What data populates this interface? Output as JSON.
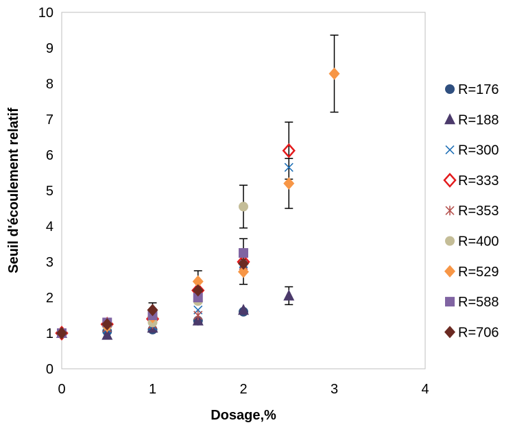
{
  "chart_data": {
    "type": "scatter",
    "xlabel": "Dosage,%",
    "ylabel": "Seuil d'écoulement relatif",
    "xlim": [
      0,
      4
    ],
    "ylim": [
      0,
      10
    ],
    "x_ticks": [
      "0",
      "1",
      "2",
      "3",
      "4"
    ],
    "y_ticks": [
      "0",
      "1",
      "2",
      "3",
      "4",
      "5",
      "6",
      "7",
      "8",
      "9",
      "10"
    ],
    "grid": false,
    "legend_position": "right",
    "series": [
      {
        "name": "R=176",
        "marker": "circle",
        "color": "#2F4F7F",
        "points": [
          {
            "x": 0,
            "y": 1
          },
          {
            "x": 0.5,
            "y": 1.05
          },
          {
            "x": 1,
            "y": 1.1
          },
          {
            "x": 1.5,
            "y": 1.35
          },
          {
            "x": 2,
            "y": 1.6
          }
        ]
      },
      {
        "name": "R=188",
        "marker": "triangle",
        "color": "#4B3A6B",
        "points": [
          {
            "x": 0,
            "y": 1
          },
          {
            "x": 0.5,
            "y": 0.95
          },
          {
            "x": 1,
            "y": 1.15
          },
          {
            "x": 1.5,
            "y": 1.35
          },
          {
            "x": 2,
            "y": 1.65
          },
          {
            "x": 2.5,
            "y": 2.05,
            "err": 0.25
          }
        ]
      },
      {
        "name": "R=300",
        "marker": "x",
        "color": "#1F6FB5",
        "points": [
          {
            "x": 0,
            "y": 1
          },
          {
            "x": 0.5,
            "y": 1.1
          },
          {
            "x": 1,
            "y": 1.2
          },
          {
            "x": 1.5,
            "y": 1.65
          },
          {
            "x": 2,
            "y": 2.95
          },
          {
            "x": 2.5,
            "y": 5.65
          }
        ]
      },
      {
        "name": "R=333",
        "marker": "diamond-open",
        "color": "#E31A1C",
        "points": [
          {
            "x": 0,
            "y": 1
          },
          {
            "x": 0.5,
            "y": 1.25
          },
          {
            "x": 1,
            "y": 1.4
          },
          {
            "x": 1.5,
            "y": 2.2
          },
          {
            "x": 2,
            "y": 3.0
          },
          {
            "x": 2.5,
            "y": 6.12,
            "err": 0.8
          }
        ]
      },
      {
        "name": "R=353",
        "marker": "star",
        "color": "#B5524F",
        "points": [
          {
            "x": 0,
            "y": 1
          },
          {
            "x": 0.5,
            "y": 1.15
          },
          {
            "x": 1,
            "y": 1.25
          },
          {
            "x": 1.5,
            "y": 1.5
          },
          {
            "x": 2,
            "y": 2.9
          }
        ]
      },
      {
        "name": "R=400",
        "marker": "circle",
        "color": "#C4BD97",
        "points": [
          {
            "x": 0,
            "y": 1
          },
          {
            "x": 0.5,
            "y": 1.2
          },
          {
            "x": 1,
            "y": 1.3
          },
          {
            "x": 1.5,
            "y": 1.9
          },
          {
            "x": 2,
            "y": 4.55,
            "err": 0.6
          }
        ]
      },
      {
        "name": "R=529",
        "marker": "diamond",
        "color": "#F79646",
        "points": [
          {
            "x": 0,
            "y": 1
          },
          {
            "x": 0.5,
            "y": 1.2
          },
          {
            "x": 1,
            "y": 1.45
          },
          {
            "x": 1.5,
            "y": 2.45,
            "err": 0.3
          },
          {
            "x": 2,
            "y": 2.72,
            "err": 0.35
          },
          {
            "x": 2.5,
            "y": 5.2,
            "err": 0.7
          },
          {
            "x": 3,
            "y": 8.28,
            "err": 1.08
          }
        ]
      },
      {
        "name": "R=588",
        "marker": "square",
        "color": "#8064A2",
        "points": [
          {
            "x": 0,
            "y": 1
          },
          {
            "x": 0.5,
            "y": 1.3
          },
          {
            "x": 1,
            "y": 1.5
          },
          {
            "x": 1.5,
            "y": 2.0
          },
          {
            "x": 2,
            "y": 3.25,
            "err": 0.4
          }
        ]
      },
      {
        "name": "R=706",
        "marker": "diamond",
        "color": "#6B2A22",
        "points": [
          {
            "x": 0,
            "y": 1
          },
          {
            "x": 0.5,
            "y": 1.25
          },
          {
            "x": 1,
            "y": 1.65,
            "err": 0.2
          },
          {
            "x": 1.5,
            "y": 2.2
          },
          {
            "x": 2,
            "y": 2.95
          }
        ]
      }
    ]
  }
}
